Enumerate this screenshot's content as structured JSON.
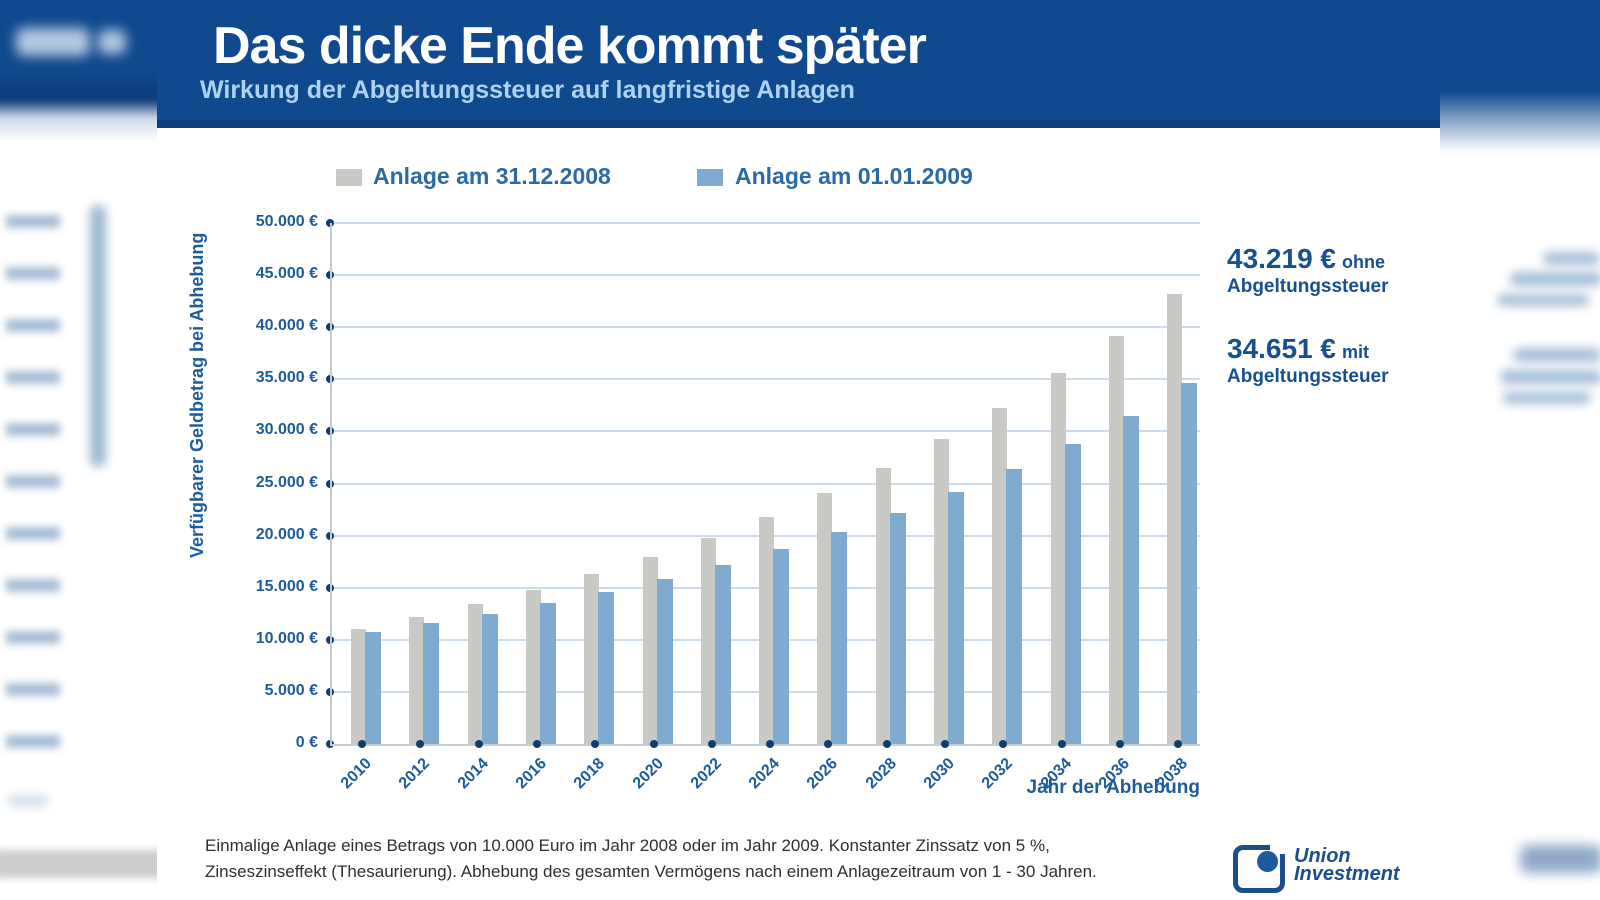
{
  "header": {
    "title": "Das dicke Ende kommt später",
    "subtitle": "Wirkung der Abgeltungssteuer auf langfristige Anlagen"
  },
  "chart_data": {
    "type": "bar",
    "categories": [
      "2010",
      "2012",
      "2014",
      "2016",
      "2018",
      "2020",
      "2022",
      "2024",
      "2026",
      "2028",
      "2030",
      "2032",
      "2034",
      "2036",
      "2038"
    ],
    "series": [
      {
        "name": "Anlage am 31.12.2008",
        "color": "#c9c9c5",
        "values": [
          11025,
          12155,
          13401,
          14775,
          16289,
          17959,
          19799,
          21829,
          24066,
          26533,
          29253,
          32251,
          35557,
          39199,
          43219
        ]
      },
      {
        "name": "Anlage am 01.01.2009",
        "color": "#7fabd1",
        "values": [
          10755,
          11587,
          12504,
          13516,
          14630,
          15860,
          17215,
          18709,
          20356,
          22172,
          24175,
          26382,
          28816,
          31498,
          34651
        ]
      }
    ],
    "title": "Das dicke Ende kommt später",
    "subtitle": "Wirkung der Abgeltungssteuer auf langfristige Anlagen",
    "xlabel": "Jahr der Abhebung",
    "ylabel": "Verfügbarer Geldbetrag bei Abhebung",
    "ylim": [
      0,
      50000
    ],
    "ytick_step": 5000,
    "ytick_suffix": " €",
    "grid": true,
    "legend_position": "top"
  },
  "annotations": [
    {
      "value": "43.219 €",
      "qualifier": "ohne",
      "label": "Abgeltungssteuer"
    },
    {
      "value": "34.651 €",
      "qualifier": "mit",
      "label": "Abgeltungssteuer"
    }
  ],
  "footnote": {
    "line1": "Einmalige Anlage eines Betrags von 10.000 Euro im Jahr 2008 oder im Jahr 2009. Konstanter Zinssatz von 5 %,",
    "line2": "Zinseszinseffekt (Thesaurierung). Abhebung des gesamten Vermögens nach einem Anlagezeitraum von 1 - 30 Jahren."
  },
  "logo": {
    "name_line1": "Union",
    "name_line2": "Investment"
  },
  "colors": {
    "banner": "#11498e",
    "banner_edge": "#0d3d7c",
    "title_text": "#ffffff",
    "subtitle_text": "#aed2ef",
    "axis_text": "#1d5c9c",
    "legend_text": "#2b6aa8",
    "annotation_text": "#16508f",
    "gridline": "#ccdcea",
    "tick_dot": "#123c6b",
    "bar_2008": "#c9c9c5",
    "bar_2009": "#7fabd1",
    "logo_blue": "#1b4e8e"
  }
}
